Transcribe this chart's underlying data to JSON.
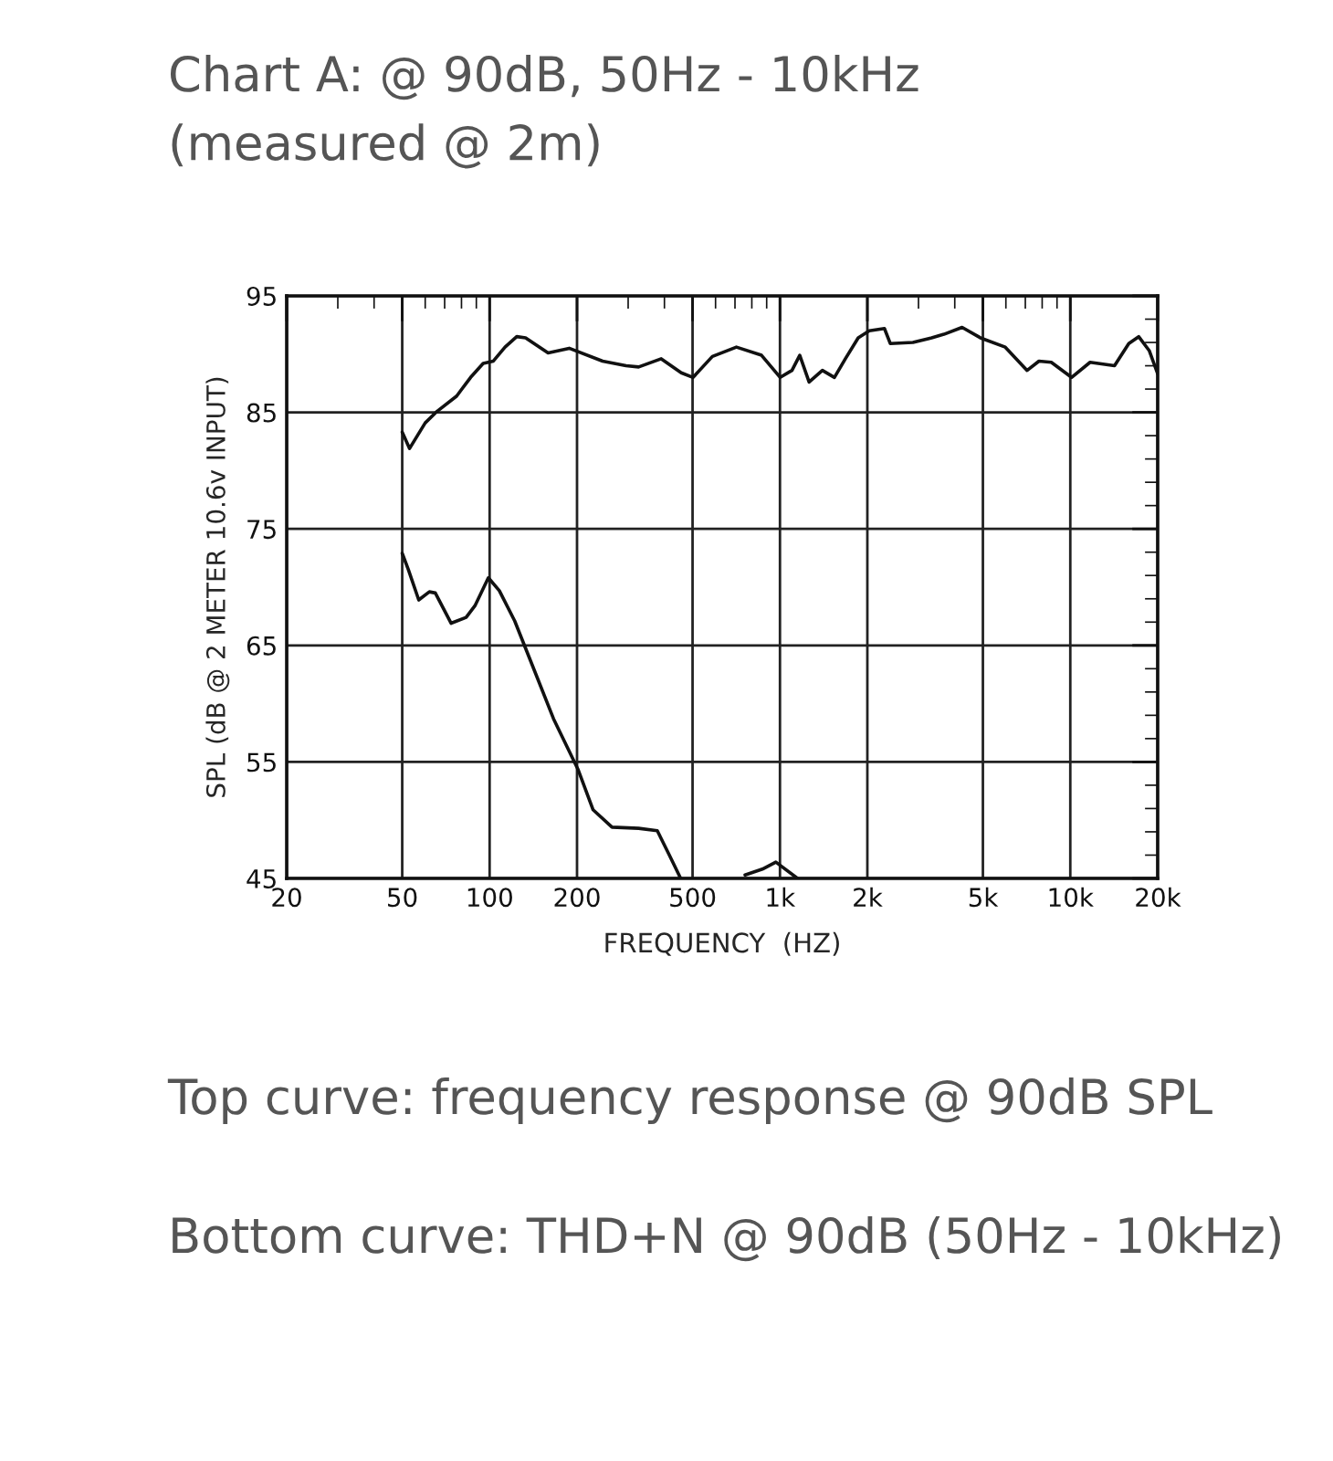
{
  "chart_data": {
    "type": "line",
    "title": "Chart A: @ 90dB, 50Hz - 10kHz\n(measured @ 2m)",
    "xlabel": "FREQUENCY  (HZ)",
    "ylabel": "SPL (dB @ 2 METER 10.6v INPUT)",
    "log": "x",
    "grid": true,
    "legend": false,
    "line_style": "solid",
    "marker": "none",
    "xlim": [
      20,
      20000
    ],
    "ylim": [
      45,
      95
    ],
    "xticks": [
      20,
      50,
      100,
      200,
      500,
      {
        "value": 1000,
        "label": "1k"
      },
      {
        "value": 2000,
        "label": "2k"
      },
      {
        "value": 5000,
        "label": "5k"
      },
      {
        "value": 10000,
        "label": "10k"
      },
      {
        "value": 20000,
        "label": "20k"
      }
    ],
    "yticks": [
      45,
      55,
      65,
      75,
      85,
      95
    ],
    "series": [
      {
        "color": "#111111",
        "x": [
          50,
          53,
          60,
          66,
          77,
          86,
          95,
          103,
          113,
          124,
          133,
          159,
          188,
          245,
          295,
          326,
          390,
          457,
          502,
          585,
          708,
          864,
          1002,
          1100,
          1170,
          1260,
          1400,
          1540,
          1680,
          1860,
          2030,
          2290,
          2400,
          2870,
          3330,
          3670,
          4240,
          4900,
          5970,
          7100,
          7800,
          8600,
          10100,
          11700,
          14200,
          15900,
          17200,
          18700,
          20000
        ],
        "values": [
          83.3,
          81.9,
          84.1,
          85.1,
          86.4,
          88.0,
          89.2,
          89.4,
          90.6,
          91.5,
          91.4,
          90.1,
          90.5,
          89.4,
          89.0,
          88.9,
          89.6,
          88.4,
          88.0,
          89.8,
          90.6,
          89.9,
          88.0,
          88.6,
          89.9,
          87.6,
          88.6,
          88.0,
          89.6,
          91.4,
          92.0,
          92.2,
          90.9,
          91.0,
          91.4,
          91.7,
          92.3,
          91.4,
          90.6,
          88.6,
          89.4,
          89.3,
          88.0,
          89.3,
          89.0,
          90.9,
          91.5,
          90.3,
          88.3
        ]
      },
      {
        "color": "#111111",
        "x": [
          50,
          52.5,
          57,
          62,
          65,
          73.7,
          83,
          89,
          99,
          108,
          122,
          145,
          166,
          202,
          227,
          264,
          326,
          378,
          416,
          455,
          600,
          758,
          870,
          968,
          1150
        ],
        "values": [
          72.9,
          71.5,
          68.9,
          69.6,
          69.5,
          66.9,
          67.4,
          68.4,
          70.8,
          69.7,
          67.1,
          62.4,
          58.7,
          54.3,
          50.9,
          49.4,
          49.3,
          49.1,
          47.0,
          45.0,
          null,
          45.3,
          45.8,
          46.4,
          45.0
        ]
      }
    ],
    "annotations": [
      "Top curve: frequency response @ 90dB SPL",
      "Bottom curve: THD+N @ 90dB (50Hz - 10kHz)"
    ]
  }
}
